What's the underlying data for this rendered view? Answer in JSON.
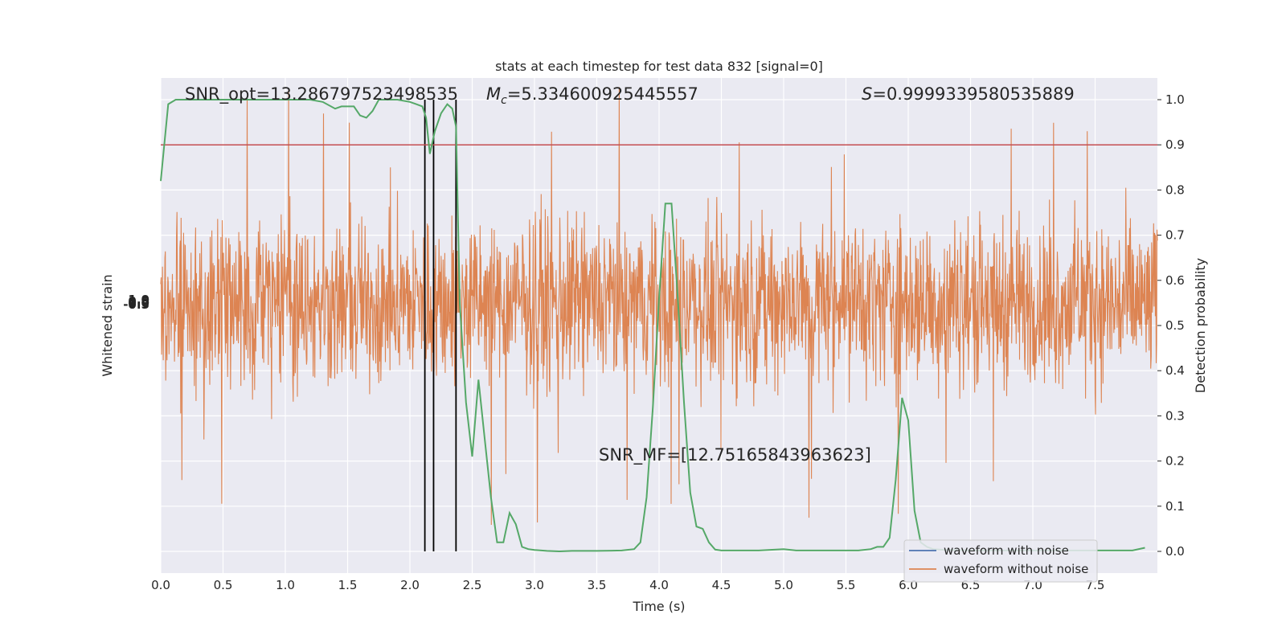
{
  "chart_data": {
    "type": "line",
    "title": "stats at each timestep for test data 832 [signal=0]",
    "xlabel": "Time (s)",
    "ylabel_left": "Whitened strain",
    "ylabel_right": "Detection probability",
    "xlim": [
      0.0,
      8.0
    ],
    "ylim_right": [
      -0.05,
      1.05
    ],
    "x_ticks": [
      "0.0",
      "0.5",
      "1.0",
      "1.5",
      "2.0",
      "2.5",
      "3.0",
      "3.5",
      "4.0",
      "4.5",
      "5.0",
      "5.5",
      "6.0",
      "6.5",
      "7.0",
      "7.5"
    ],
    "y_ticks_right": [
      "0.0",
      "0.1",
      "0.2",
      "0.3",
      "0.4",
      "0.5",
      "0.6",
      "0.7",
      "0.8",
      "0.9",
      "1.0"
    ],
    "grid": true,
    "legend_position": "lower-right",
    "annotations": {
      "snr_opt": "SNR_opt=13.286797523498535",
      "mc_symbol": "M",
      "mc_sub": "c",
      "mc_value": "=5.334600925445557",
      "s_symbol": "S",
      "s_value": "=0.9999339580535889",
      "snr_mf": "SNR_MF=[12.75165843963623]"
    },
    "threshold": 0.9,
    "vertical_markers_x": [
      2.12,
      2.19,
      2.37
    ],
    "series": [
      {
        "name": "waveform with noise",
        "color": "#4c72b0",
        "kind": "strain"
      },
      {
        "name": "waveform without noise",
        "color": "#dd8452",
        "kind": "strain"
      },
      {
        "color": "#55a868",
        "kind": "probability",
        "x": [
          0.0,
          0.06,
          0.12,
          0.2,
          0.3,
          0.5,
          0.7,
          1.0,
          1.2,
          1.3,
          1.4,
          1.45,
          1.5,
          1.55,
          1.6,
          1.65,
          1.7,
          1.75,
          1.8,
          1.85,
          1.9,
          2.0,
          2.05,
          2.1,
          2.13,
          2.16,
          2.2,
          2.25,
          2.3,
          2.34,
          2.37,
          2.4,
          2.45,
          2.5,
          2.55,
          2.6,
          2.65,
          2.7,
          2.75,
          2.8,
          2.85,
          2.9,
          2.95,
          3.0,
          3.1,
          3.2,
          3.3,
          3.5,
          3.7,
          3.8,
          3.85,
          3.9,
          3.95,
          4.0,
          4.05,
          4.1,
          4.15,
          4.2,
          4.25,
          4.3,
          4.35,
          4.4,
          4.45,
          4.5,
          4.55,
          4.6,
          4.7,
          4.8,
          5.0,
          5.1,
          5.2,
          5.4,
          5.6,
          5.7,
          5.75,
          5.8,
          5.85,
          5.9,
          5.95,
          6.0,
          6.05,
          6.1,
          6.15,
          6.2,
          6.3,
          6.5,
          7.0,
          7.5,
          7.8,
          7.9
        ],
        "y": [
          0.82,
          0.99,
          1.0,
          1.0,
          1.0,
          1.0,
          1.0,
          1.0,
          1.0,
          0.995,
          0.98,
          0.985,
          0.985,
          0.985,
          0.965,
          0.96,
          0.975,
          1.0,
          1.0,
          1.0,
          1.0,
          0.995,
          0.99,
          0.985,
          0.96,
          0.88,
          0.93,
          0.97,
          0.99,
          0.98,
          0.94,
          0.55,
          0.33,
          0.21,
          0.38,
          0.25,
          0.12,
          0.02,
          0.02,
          0.085,
          0.06,
          0.01,
          0.005,
          0.003,
          0.001,
          0.0,
          0.001,
          0.001,
          0.002,
          0.005,
          0.02,
          0.12,
          0.32,
          0.56,
          0.77,
          0.77,
          0.56,
          0.33,
          0.13,
          0.055,
          0.05,
          0.02,
          0.004,
          0.002,
          0.002,
          0.002,
          0.002,
          0.002,
          0.005,
          0.002,
          0.002,
          0.002,
          0.002,
          0.005,
          0.01,
          0.01,
          0.03,
          0.16,
          0.34,
          0.29,
          0.09,
          0.02,
          0.01,
          0.005,
          0.003,
          0.002,
          0.002,
          0.002,
          0.002,
          0.008
        ]
      }
    ],
    "strain_envelope": {
      "center": 0.55,
      "typical_half_width": 0.15,
      "min": 0.0,
      "max": 1.05
    },
    "left_axis_overlap_ticks": [
      "-0.5",
      "0.0",
      "0.5",
      "1.0"
    ]
  }
}
